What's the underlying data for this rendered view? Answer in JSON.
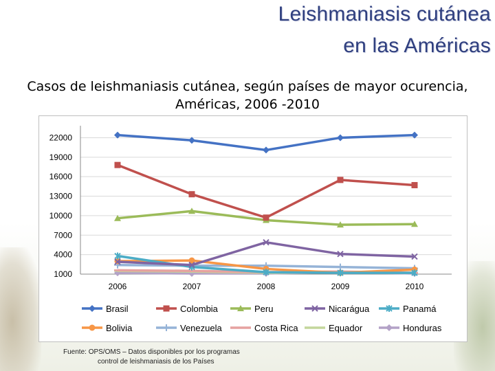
{
  "header": {
    "title_line1": "Leishmaniasis cutánea",
    "title_line2": "en las Américas",
    "subtitle_line1": "Casos de leishmaniasis cutánea, según países de mayor ocurencia,",
    "subtitle_line2": "Américas, 2006 -2010"
  },
  "footer": {
    "line1": "Fuente: OPS/OMS – Datos disponibles por los programas",
    "line2": "control de leishmaniasis de los Países"
  },
  "chart_data": {
    "type": "line",
    "title": "Casos de leishmaniasis cutánea, según países de mayor ocurencia, Américas, 2006 -2010",
    "xlabel": "",
    "ylabel": "",
    "x": [
      "2006",
      "2007",
      "2008",
      "2009",
      "2010"
    ],
    "y_ticks": [
      "1000",
      "4000",
      "7000",
      "10000",
      "13000",
      "16000",
      "19000",
      "22000"
    ],
    "ylim": [
      1000,
      23000
    ],
    "grid": true,
    "legend_position": "bottom",
    "series": [
      {
        "name": "Brasil",
        "values": [
          22400,
          21600,
          20100,
          22000,
          22400
        ],
        "color": "#4472c4",
        "marker": "diamond"
      },
      {
        "name": "Colombia",
        "values": [
          17800,
          13300,
          9700,
          15500,
          14700
        ],
        "color": "#c0504d",
        "marker": "square"
      },
      {
        "name": "Peru",
        "values": [
          9600,
          10700,
          9300,
          8600,
          8700
        ],
        "color": "#9bbb59",
        "marker": "triangle"
      },
      {
        "name": "Nicarágua",
        "values": [
          2900,
          2400,
          5900,
          4100,
          3700
        ],
        "color": "#7f64a2",
        "marker": "x"
      },
      {
        "name": "Panamá",
        "values": [
          3800,
          2100,
          1300,
          1200,
          1200
        ],
        "color": "#4bacc6",
        "marker": "star"
      },
      {
        "name": "Bolivia",
        "values": [
          3000,
          3100,
          1800,
          1200,
          1700
        ],
        "color": "#f79646",
        "marker": "circle"
      },
      {
        "name": "Venezuela",
        "values": [
          2400,
          2300,
          2300,
          2100,
          1900
        ],
        "color": "#95b3d7",
        "marker": "plus"
      },
      {
        "name": "Costa Rica",
        "values": [
          1600,
          1500,
          1300,
          1400,
          1200
        ],
        "color": "#e6a2a0",
        "marker": "dash"
      },
      {
        "name": "Equador",
        "values": [
          1500,
          1400,
          1200,
          1300,
          1200
        ],
        "color": "#c3d69b",
        "marker": "dash"
      },
      {
        "name": "Honduras",
        "values": [
          1200,
          1100,
          1100,
          1300,
          1100
        ],
        "color": "#b3a2c7",
        "marker": "diamond"
      }
    ]
  }
}
